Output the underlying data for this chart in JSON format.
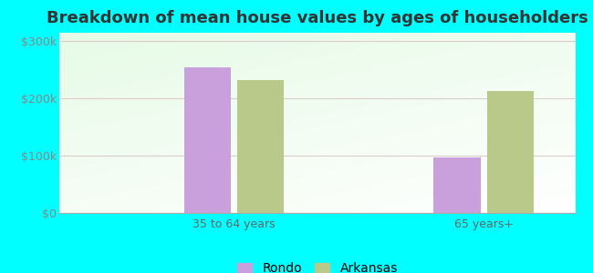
{
  "title": "Breakdown of mean house values by ages of householders",
  "categories": [
    "35 to 64 years",
    "65 years+"
  ],
  "series": {
    "Rondo": [
      255000,
      97000
    ],
    "Arkansas": [
      232000,
      213000
    ]
  },
  "bar_colors": {
    "Rondo": "#c9a0dc",
    "Arkansas": "#b8c98a"
  },
  "yticks": [
    0,
    100000,
    200000,
    300000
  ],
  "ytick_labels": [
    "$0",
    "$100k",
    "$200k",
    "$300k"
  ],
  "ylim": [
    0,
    315000
  ],
  "background_color": "#00ffff",
  "title_fontsize": 13,
  "tick_fontsize": 9,
  "legend_fontsize": 10,
  "bar_width": 0.28,
  "xlim": [
    -0.55,
    2.55
  ]
}
